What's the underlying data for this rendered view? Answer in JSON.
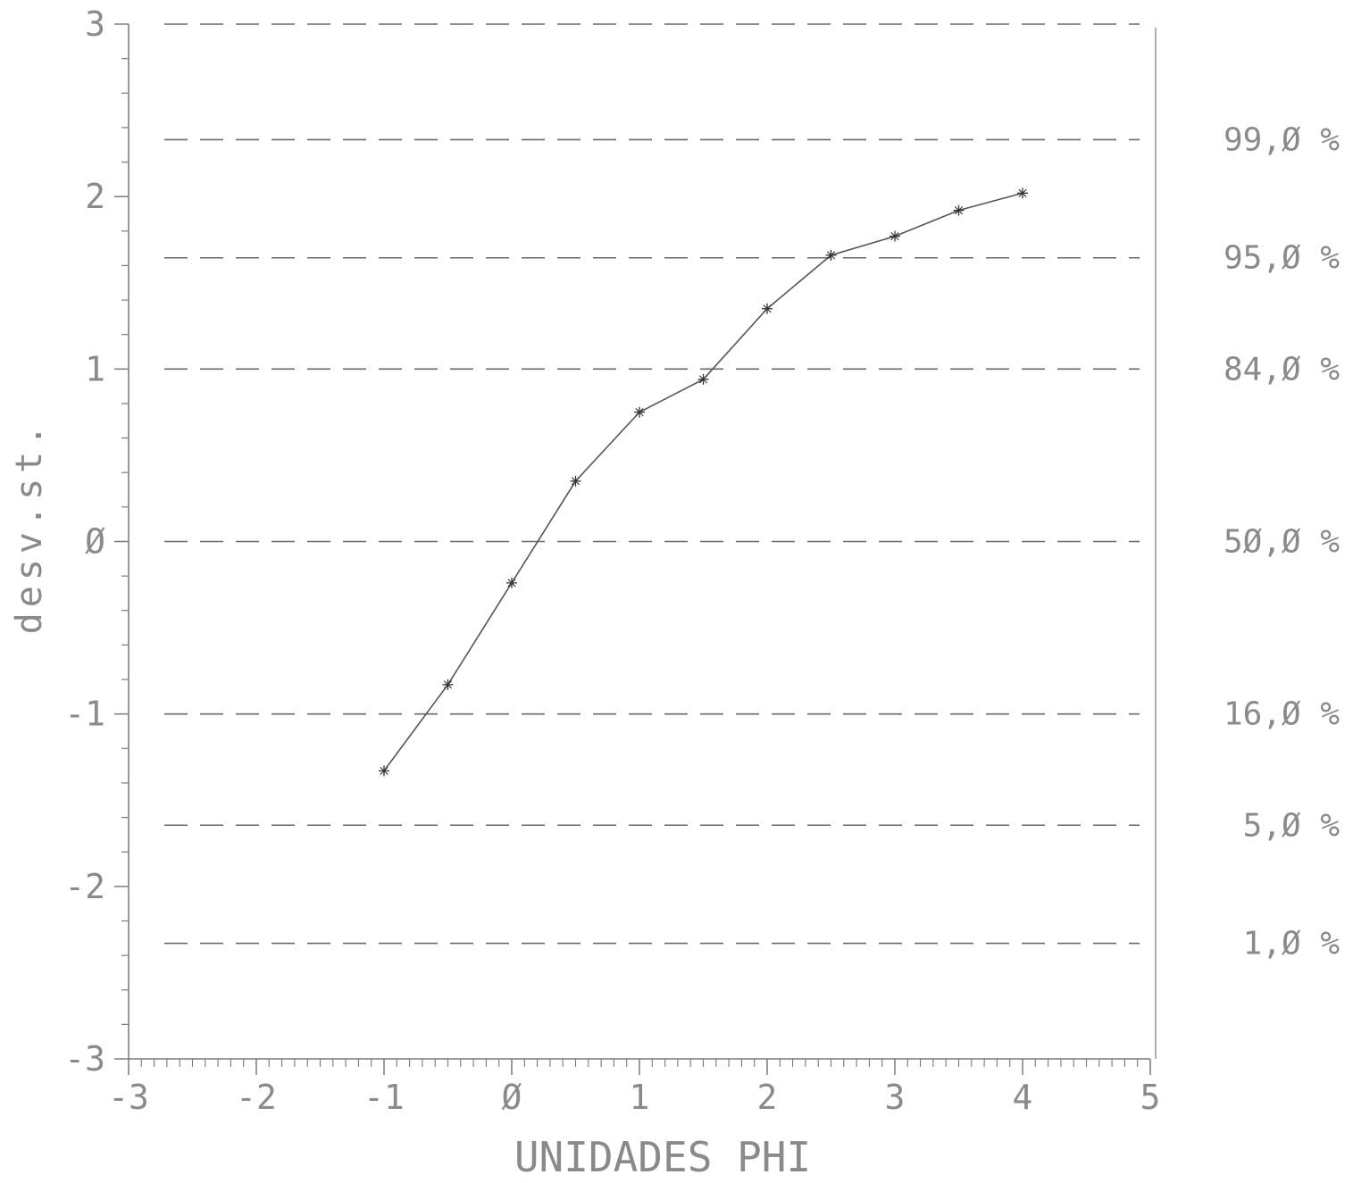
{
  "chart_data": {
    "type": "line",
    "title": "",
    "xlabel": "UNIDADES PHI",
    "ylabel": "desv.st.",
    "xlim": [
      -3,
      5
    ],
    "ylim": [
      -3,
      3
    ],
    "grid": false,
    "x_ticks": [
      -3,
      -2,
      -1,
      0,
      1,
      2,
      3,
      4,
      5
    ],
    "x_tick_labels": [
      "-3",
      "-2",
      "-1",
      "Ø",
      "1",
      "2",
      "3",
      "4",
      "5"
    ],
    "y_ticks": [
      -3,
      -2,
      -1,
      0,
      1,
      2,
      3
    ],
    "y_tick_labels": [
      "-3",
      "-2",
      "-1",
      "Ø",
      "1",
      "2",
      "3"
    ],
    "reference_lines": [
      {
        "y": 2.33,
        "label": "99,Ø %"
      },
      {
        "y": 1.645,
        "label": "95,Ø %"
      },
      {
        "y": 1.0,
        "label": "84,Ø %"
      },
      {
        "y": 0.0,
        "label": "5Ø,Ø %"
      },
      {
        "y": -1.0,
        "label": "16,Ø %"
      },
      {
        "y": -1.645,
        "label": "5,Ø %"
      },
      {
        "y": -2.33,
        "label": "1,Ø %"
      }
    ],
    "series": [
      {
        "marker": "asterisk",
        "x": [
          -1.0,
          -0.5,
          0.0,
          0.5,
          1.0,
          1.5,
          2.0,
          2.5,
          3.0,
          3.5,
          4.0
        ],
        "y": [
          -1.33,
          -0.83,
          -0.24,
          0.35,
          0.75,
          0.94,
          1.35,
          1.66,
          1.77,
          1.92,
          2.02
        ]
      }
    ],
    "colors": {
      "line": "#555555",
      "axis": "#7a7a7a",
      "dashes": "#6a6a6a",
      "text": "#8a8a8a"
    }
  }
}
